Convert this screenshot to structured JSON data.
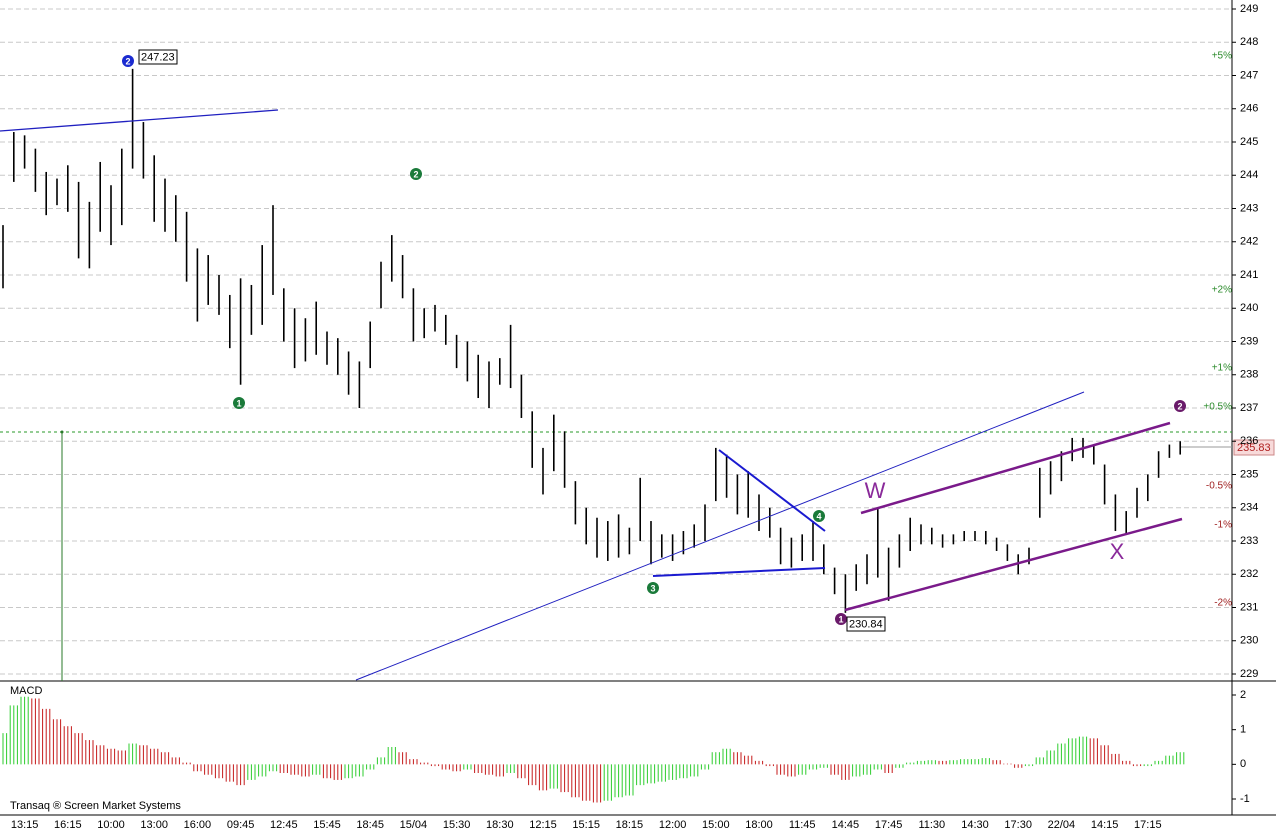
{
  "chart_data": [
    {
      "type": "hilo",
      "categories": [
        null,
        null,
        "13:15",
        null,
        null,
        null,
        "16:15",
        null,
        null,
        null,
        "10:00",
        null,
        null,
        null,
        "13:00",
        null,
        null,
        null,
        "16:00",
        null,
        null,
        null,
        "09:45",
        null,
        null,
        null,
        "12:45",
        null,
        null,
        null,
        "15:45",
        null,
        null,
        null,
        "18:45",
        null,
        null,
        null,
        "15/04",
        null,
        null,
        null,
        "15:30",
        null,
        null,
        null,
        "18:30",
        null,
        null,
        null,
        "12:15",
        null,
        null,
        null,
        "15:15",
        null,
        null,
        null,
        "18:15",
        null,
        null,
        null,
        "12:00",
        null,
        null,
        null,
        "15:00",
        null,
        null,
        null,
        "18:00",
        null,
        null,
        null,
        "11:45",
        null,
        null,
        null,
        "14:45",
        null,
        null,
        null,
        "17:45",
        null,
        null,
        null,
        "11:30",
        null,
        null,
        null,
        "14:30",
        null,
        null,
        null,
        "17:30",
        null,
        null,
        null,
        "22/04",
        null,
        null,
        null,
        "14:15",
        null,
        null,
        null,
        "17:15",
        null,
        null,
        null
      ],
      "high": [
        242.5,
        245.3,
        245.2,
        244.8,
        244.1,
        243.9,
        244.3,
        243.8,
        243.2,
        244.4,
        243.7,
        244.8,
        247.2,
        245.6,
        244.6,
        243.9,
        243.4,
        242.9,
        241.8,
        241.6,
        241.0,
        240.4,
        240.9,
        240.7,
        241.9,
        243.1,
        240.6,
        240.0,
        239.7,
        240.2,
        239.3,
        239.1,
        238.7,
        238.4,
        239.6,
        241.4,
        242.2,
        241.6,
        240.6,
        240.0,
        240.1,
        239.8,
        239.2,
        239.0,
        238.6,
        238.4,
        238.5,
        239.5,
        238.0,
        236.9,
        235.8,
        236.8,
        236.3,
        234.8,
        234.0,
        233.7,
        233.6,
        233.8,
        233.4,
        234.9,
        233.6,
        233.2,
        233.2,
        233.3,
        233.5,
        234.1,
        235.8,
        235.6,
        235.0,
        235.1,
        234.4,
        234.0,
        233.4,
        233.1,
        233.2,
        233.6,
        232.9,
        232.2,
        232.0,
        232.3,
        232.6,
        234.0,
        232.8,
        233.2,
        233.7,
        233.5,
        233.4,
        233.2,
        233.2,
        233.3,
        233.3,
        233.3,
        233.1,
        232.9,
        232.6,
        232.8,
        235.2,
        235.4,
        235.7,
        236.1,
        236.1,
        235.9,
        235.3,
        234.4,
        233.9,
        234.6,
        235.0,
        235.7,
        235.9,
        236.0
      ],
      "low": [
        240.6,
        243.8,
        244.2,
        243.5,
        242.8,
        243.1,
        242.9,
        241.5,
        241.2,
        242.3,
        241.9,
        242.5,
        244.2,
        243.9,
        242.6,
        242.3,
        242.0,
        240.8,
        239.6,
        240.1,
        239.8,
        238.8,
        237.7,
        239.2,
        239.5,
        240.4,
        239.0,
        238.2,
        238.4,
        238.6,
        238.3,
        238.0,
        237.4,
        237.0,
        238.2,
        240.0,
        240.8,
        240.3,
        239.0,
        239.1,
        239.3,
        238.9,
        238.2,
        237.8,
        237.3,
        237.0,
        237.7,
        237.6,
        236.7,
        235.2,
        234.4,
        235.1,
        234.6,
        233.5,
        232.9,
        232.5,
        232.4,
        232.5,
        232.6,
        233.0,
        232.3,
        232.5,
        232.4,
        232.6,
        232.8,
        233.0,
        234.2,
        234.3,
        233.8,
        233.7,
        233.3,
        233.1,
        232.3,
        232.2,
        232.4,
        232.4,
        232.0,
        231.4,
        230.84,
        231.5,
        231.7,
        231.9,
        231.2,
        232.2,
        232.7,
        232.9,
        232.9,
        232.8,
        232.9,
        233.0,
        233.0,
        232.9,
        232.7,
        232.4,
        232.0,
        232.3,
        233.7,
        234.4,
        234.8,
        235.4,
        235.5,
        235.3,
        234.1,
        233.3,
        233.2,
        233.7,
        234.2,
        234.9,
        235.5,
        235.6
      ],
      "color": "#000000",
      "ylim": [
        229,
        249
      ],
      "yticks": [
        229,
        230,
        231,
        232,
        233,
        234,
        235,
        236,
        237,
        238,
        239,
        240,
        241,
        242,
        243,
        244,
        245,
        246,
        247,
        248,
        249
      ],
      "grid": true,
      "wave_labels": [
        "2",
        "1",
        "2",
        "3",
        "4",
        "1",
        "W",
        "X",
        "2"
      ],
      "price_labels": [
        "247.23",
        "230.84",
        "235.83"
      ],
      "percent_labels": [
        "+5%",
        "+2%",
        "+1%",
        "+0.5%",
        "-0.5%",
        "-1%",
        "-2%"
      ],
      "footer": "Transaq ® Screen Market Systems"
    },
    {
      "type": "histogram",
      "title": "MACD",
      "values": [
        0.9,
        1.7,
        1.95,
        1.9,
        1.6,
        1.3,
        1.1,
        0.9,
        0.7,
        0.55,
        0.45,
        0.4,
        0.6,
        0.55,
        0.45,
        0.35,
        0.2,
        0.05,
        -0.2,
        -0.3,
        -0.4,
        -0.5,
        -0.6,
        -0.45,
        -0.35,
        -0.2,
        -0.25,
        -0.3,
        -0.35,
        -0.3,
        -0.4,
        -0.45,
        -0.4,
        -0.35,
        -0.15,
        0.2,
        0.5,
        0.35,
        0.15,
        0.05,
        -0.05,
        -0.15,
        -0.2,
        -0.15,
        -0.25,
        -0.3,
        -0.35,
        -0.25,
        -0.4,
        -0.6,
        -0.75,
        -0.7,
        -0.8,
        -0.95,
        -1.05,
        -1.1,
        -1.05,
        -0.95,
        -0.9,
        -0.6,
        -0.55,
        -0.5,
        -0.45,
        -0.4,
        -0.35,
        -0.15,
        0.35,
        0.45,
        0.35,
        0.25,
        0.1,
        -0.05,
        -0.3,
        -0.35,
        -0.3,
        -0.15,
        -0.1,
        -0.3,
        -0.45,
        -0.35,
        -0.3,
        -0.15,
        -0.25,
        -0.1,
        0.05,
        0.1,
        0.12,
        0.1,
        0.12,
        0.15,
        0.15,
        0.18,
        0.12,
        0.02,
        -0.1,
        -0.05,
        0.2,
        0.4,
        0.6,
        0.75,
        0.8,
        0.75,
        0.55,
        0.3,
        0.1,
        -0.05,
        -0.05,
        0.1,
        0.25,
        0.35
      ],
      "colors": {
        "up": "#2ecc2e",
        "down": "#c41a1a"
      },
      "ylim": [
        -1.35,
        2.35
      ],
      "yticks": [
        -1,
        0,
        1,
        2
      ]
    }
  ]
}
